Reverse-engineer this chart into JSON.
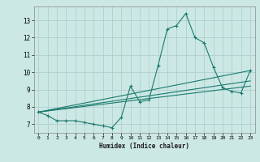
{
  "xlabel": "Humidex (Indice chaleur)",
  "bg_color": "#cce8e5",
  "grid_color": "#b0d0cc",
  "line_color": "#1a7a6e",
  "series": [
    {
      "x": [
        0,
        1,
        2,
        3,
        4,
        5,
        6,
        7,
        8,
        9,
        10,
        11,
        12,
        13,
        14,
        15,
        16,
        17,
        18,
        19,
        20,
        21,
        22,
        23
      ],
      "y": [
        7.7,
        7.5,
        7.2,
        7.2,
        7.2,
        7.1,
        7.0,
        6.9,
        6.8,
        7.4,
        9.2,
        8.3,
        8.4,
        10.4,
        12.5,
        12.7,
        13.4,
        12.0,
        11.7,
        10.3,
        9.1,
        8.9,
        8.8,
        10.1
      ]
    },
    {
      "x": [
        0,
        23
      ],
      "y": [
        7.7,
        10.1
      ]
    },
    {
      "x": [
        0,
        23
      ],
      "y": [
        7.7,
        9.5
      ]
    },
    {
      "x": [
        0,
        23
      ],
      "y": [
        7.7,
        9.2
      ]
    }
  ],
  "xlim": [
    -0.5,
    23.5
  ],
  "ylim": [
    6.5,
    13.8
  ],
  "yticks": [
    7,
    8,
    9,
    10,
    11,
    12,
    13
  ],
  "xticks": [
    0,
    1,
    2,
    3,
    4,
    5,
    6,
    7,
    8,
    9,
    10,
    11,
    12,
    13,
    14,
    15,
    16,
    17,
    18,
    19,
    20,
    21,
    22,
    23
  ]
}
